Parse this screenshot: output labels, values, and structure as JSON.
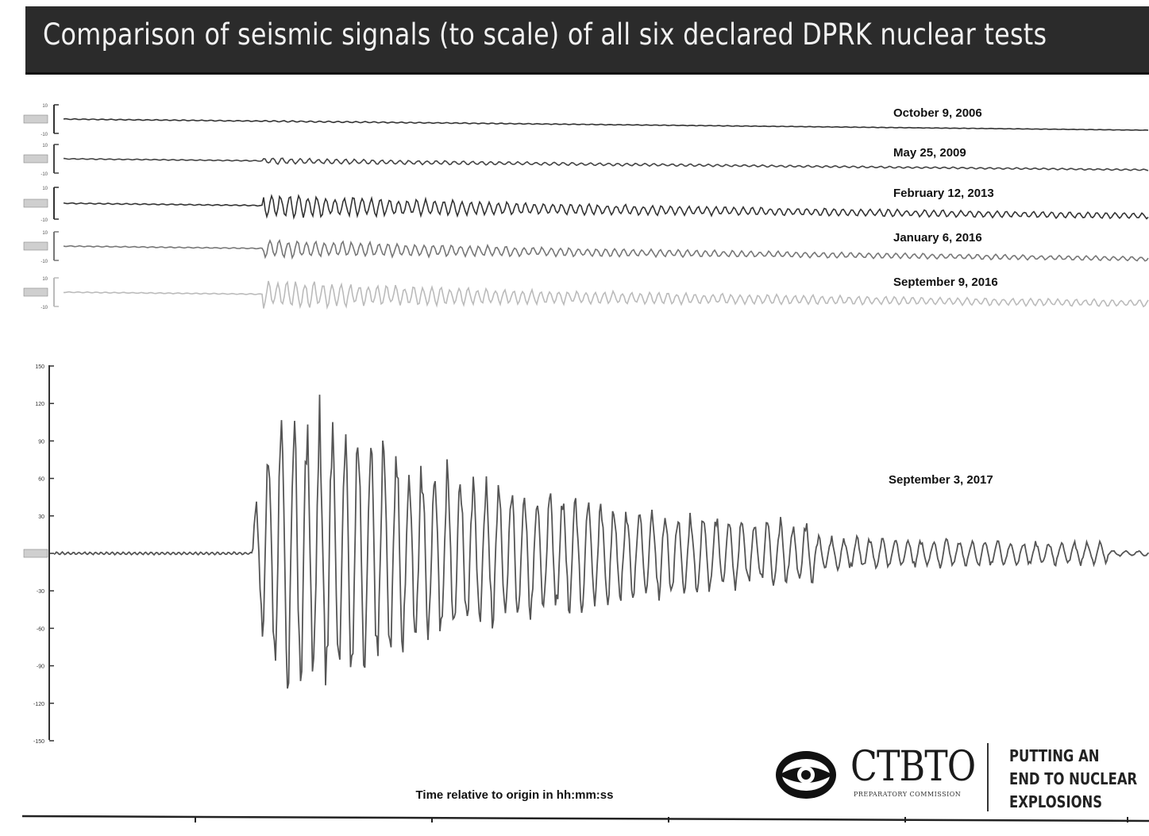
{
  "title": "Comparison of seismic signals (to scale) of all six declared DPRK nuclear tests",
  "logo": {
    "name": "CTBTO",
    "subtitle": "PREPARATORY COMMISSION",
    "tagline": [
      "PUTTING AN",
      "END TO NUCLEAR",
      "EXPLOSIONS"
    ]
  },
  "chart_data": {
    "type": "line",
    "xlabel": "Time relative to origin in hh:mm:ss",
    "series": [
      {
        "name": "October 9, 2006",
        "ylim": [
          -10,
          10
        ],
        "peak_amplitude": 0.5,
        "color": "#333333"
      },
      {
        "name": "May 25, 2009",
        "ylim": [
          -10,
          10
        ],
        "peak_amplitude": 2,
        "color": "#444444"
      },
      {
        "name": "February 12, 2013",
        "ylim": [
          -10,
          10
        ],
        "peak_amplitude": 7,
        "color": "#333333"
      },
      {
        "name": "January 6, 2016",
        "ylim": [
          -10,
          10
        ],
        "peak_amplitude": 6,
        "color": "#777777"
      },
      {
        "name": "September 9, 2016",
        "ylim": [
          -10,
          10
        ],
        "peak_amplitude": 9,
        "color": "#bbbbbb"
      },
      {
        "name": "September 3, 2017",
        "ylim": [
          -150,
          150
        ],
        "yticks": [
          150,
          120,
          90,
          60,
          30,
          0,
          -30,
          -60,
          -90,
          -120,
          -150
        ],
        "peak_amplitude": 138,
        "color": "#555555"
      }
    ]
  }
}
